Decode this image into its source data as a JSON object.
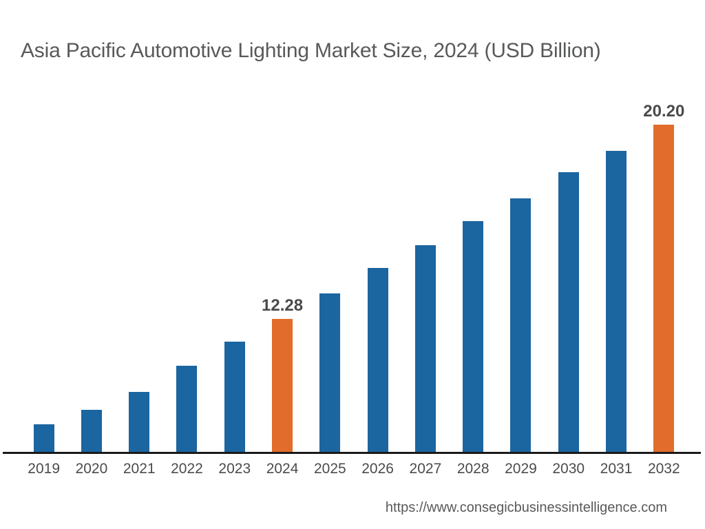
{
  "page": {
    "background": "#FFFFFF"
  },
  "header": {
    "title": "Asia Pacific Automotive Lighting Market Size, 2024 (USD Billion)",
    "title_color": "#58595B"
  },
  "chart_data": {
    "type": "bar",
    "title": "Asia Pacific Automotive Lighting Market Size, 2024 (USD Billion)",
    "categories": [
      "2019",
      "2020",
      "2021",
      "2022",
      "2023",
      "2024",
      "2025",
      "2026",
      "2027",
      "2028",
      "2029",
      "2030",
      "2031",
      "2032"
    ],
    "values": [
      7.98,
      8.57,
      9.3,
      10.37,
      11.35,
      12.28,
      13.32,
      14.36,
      15.29,
      16.27,
      17.2,
      18.26,
      19.13,
      20.2
    ],
    "labeled_values": {
      "2024": "12.28",
      "2032": "20.20"
    },
    "highlighted_categories": [
      "2024",
      "2032"
    ],
    "bar_color": "#1B65A0",
    "highlight_color": "#E26C2B",
    "axis_line_color": "#1A1A1A",
    "tick_label_color": "#4B4B4D",
    "data_label_color": "#4A4A4C",
    "value_axis_visible": false,
    "gridlines": false,
    "legend": false,
    "baseline_value": 6.86,
    "ylim": [
      6.86,
      21.5
    ],
    "values_note": "Only the 2024 and 2032 bars carry printed data labels; remaining values are estimated from bar heights."
  },
  "footer": {
    "url": "https://www.consegicbusinessintelligence.com",
    "color": "#58595B"
  }
}
